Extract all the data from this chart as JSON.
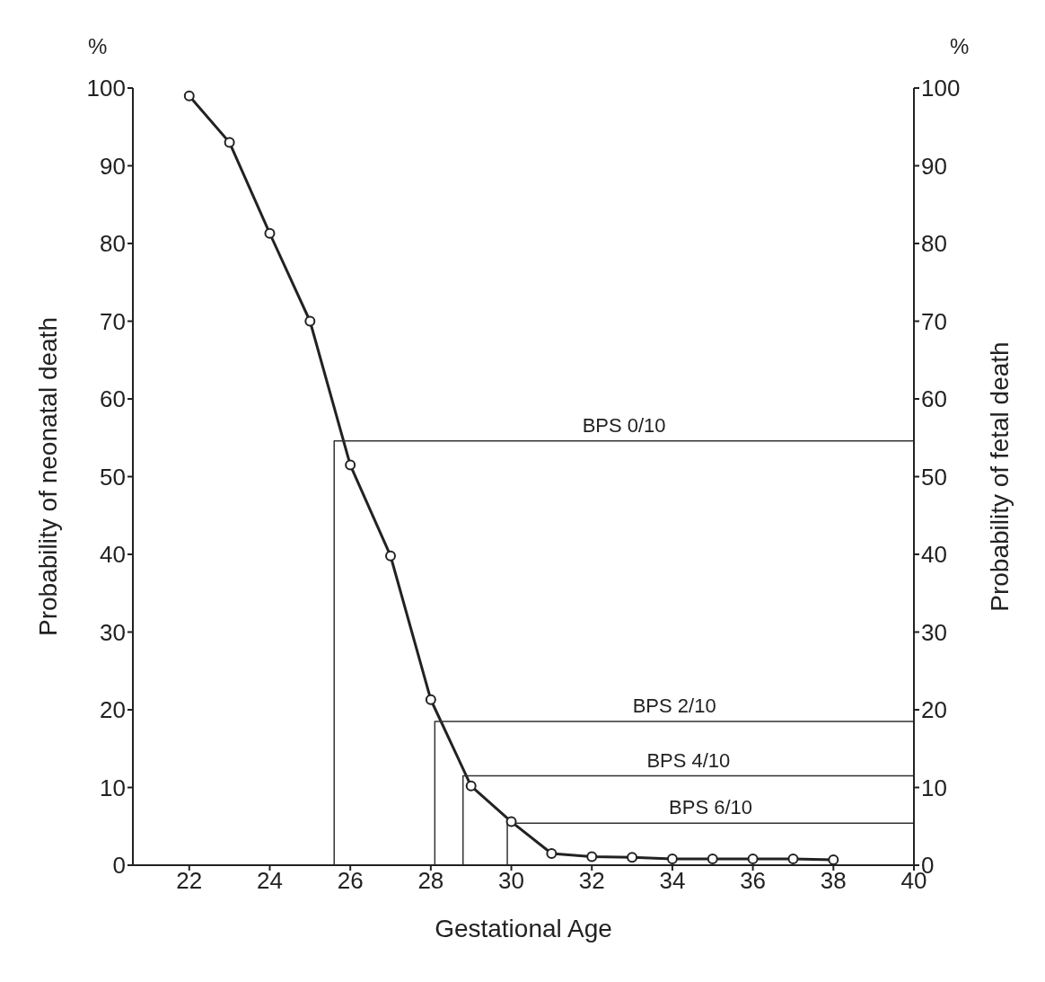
{
  "chart_data": {
    "type": "line",
    "xlabel": "Gestational Age",
    "ylabel": "Probability of neonatal death",
    "y2label": "Probability of fetal death",
    "xlim": [
      20.6,
      40
    ],
    "xticks": [
      22,
      24,
      26,
      28,
      30,
      32,
      34,
      36,
      38,
      40
    ],
    "ylim": [
      0,
      100
    ],
    "yticks": [
      0,
      10,
      20,
      30,
      40,
      50,
      60,
      70,
      80,
      90,
      100
    ],
    "y2lim": [
      0,
      100
    ],
    "y2ticks": [
      0,
      10,
      20,
      30,
      40,
      50,
      60,
      70,
      80,
      90,
      100
    ],
    "marker": "circle",
    "line_style": "solid",
    "series": [
      {
        "color": "#222222",
        "x": [
          22,
          23,
          24,
          25,
          26,
          27,
          28,
          29,
          30,
          31,
          32,
          33,
          34,
          35,
          36,
          37,
          38
        ],
        "values": [
          99,
          93,
          81.3,
          70,
          51.5,
          39.8,
          21.3,
          10.2,
          5.6,
          1.5,
          1.1,
          1.0,
          0.8,
          0.8,
          0.8,
          0.8,
          0.7
        ]
      },
      {
        "name": "BPS 0/10",
        "color": "#333333",
        "marker": "none",
        "x": [
          25.6,
          25.6,
          40
        ],
        "values": [
          0,
          54.6,
          54.6
        ]
      },
      {
        "name": "BPS 2/10",
        "color": "#333333",
        "marker": "none",
        "x": [
          28.1,
          28.1,
          40
        ],
        "values": [
          0,
          18.5,
          18.5
        ]
      },
      {
        "name": "BPS 4/10",
        "color": "#333333",
        "marker": "none",
        "x": [
          28.8,
          28.8,
          40
        ],
        "values": [
          0,
          11.5,
          11.5
        ]
      },
      {
        "name": "BPS 6/10",
        "color": "#333333",
        "marker": "none",
        "x": [
          29.9,
          29.9,
          40
        ],
        "values": [
          0,
          5.4,
          5.4
        ]
      }
    ],
    "annotations": [
      "%",
      "%"
    ]
  }
}
